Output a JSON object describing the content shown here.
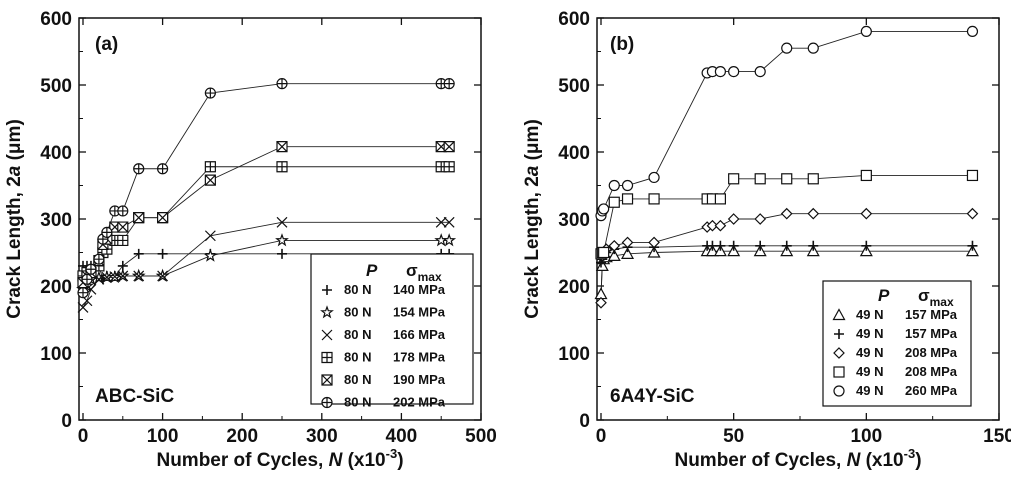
{
  "chart_data": [
    {
      "type": "line",
      "panel_label": "(a)",
      "material": "ABC-SiC",
      "xlabel": {
        "main": "Number of Cycles, ",
        "var": "N",
        "unit_pre": " (x10",
        "unit_exp": "-3",
        "unit_post": ")"
      },
      "ylabel": {
        "main": "Crack Length, 2",
        "var": "a",
        "unit": " (μm)"
      },
      "xlim": [
        0,
        500
      ],
      "ylim": [
        0,
        600
      ],
      "xticks": [
        0,
        100,
        200,
        300,
        400,
        500
      ],
      "yticks": [
        0,
        100,
        200,
        300,
        400,
        500,
        600
      ],
      "legend_header": {
        "p": "P",
        "sigma": "σ",
        "sigma_sub": "max"
      },
      "series": [
        {
          "load": "80 N",
          "stress": "140 MPa",
          "marker": "plus",
          "points": [
            [
              0,
              230
            ],
            [
              5,
              230
            ],
            [
              10,
              230
            ],
            [
              20,
              230
            ],
            [
              25,
              210
            ],
            [
              30,
              215
            ],
            [
              40,
              215
            ],
            [
              50,
              230
            ],
            [
              70,
              248
            ],
            [
              100,
              248
            ],
            [
              160,
              248
            ],
            [
              250,
              248
            ],
            [
              450,
              248
            ],
            [
              460,
              248
            ]
          ]
        },
        {
          "load": "80 N",
          "stress": "154 MPa",
          "marker": "star",
          "points": [
            [
              0,
              195
            ],
            [
              5,
              200
            ],
            [
              10,
              210
            ],
            [
              20,
              212
            ],
            [
              30,
              213
            ],
            [
              40,
              213
            ],
            [
              50,
              215
            ],
            [
              70,
              215
            ],
            [
              100,
              215
            ],
            [
              160,
              245
            ],
            [
              250,
              268
            ],
            [
              450,
              268
            ],
            [
              460,
              268
            ]
          ]
        },
        {
          "load": "80 N",
          "stress": "166 MPa",
          "marker": "x",
          "points": [
            [
              0,
              168
            ],
            [
              5,
              178
            ],
            [
              10,
              195
            ],
            [
              20,
              210
            ],
            [
              30,
              213
            ],
            [
              40,
              214
            ],
            [
              50,
              215
            ],
            [
              70,
              215
            ],
            [
              100,
              215
            ],
            [
              160,
              275
            ],
            [
              250,
              295
            ],
            [
              450,
              295
            ],
            [
              460,
              295
            ]
          ]
        },
        {
          "load": "80 N",
          "stress": "178 MPa",
          "marker": "sqplus",
          "points": [
            [
              0,
              215
            ],
            [
              5,
              220
            ],
            [
              10,
              222
            ],
            [
              20,
              230
            ],
            [
              25,
              250
            ],
            [
              30,
              255
            ],
            [
              40,
              268
            ],
            [
              50,
              268
            ],
            [
              70,
              302
            ],
            [
              100,
              302
            ],
            [
              160,
              378
            ],
            [
              250,
              378
            ],
            [
              450,
              378
            ],
            [
              460,
              378
            ]
          ]
        },
        {
          "load": "80 N",
          "stress": "190 MPa",
          "marker": "sqx",
          "points": [
            [
              0,
              205
            ],
            [
              5,
              215
            ],
            [
              10,
              220
            ],
            [
              20,
              238
            ],
            [
              25,
              262
            ],
            [
              30,
              270
            ],
            [
              40,
              288
            ],
            [
              50,
              288
            ],
            [
              70,
              302
            ],
            [
              100,
              302
            ],
            [
              160,
              358
            ],
            [
              250,
              408
            ],
            [
              450,
              408
            ],
            [
              460,
              408
            ]
          ]
        },
        {
          "load": "80 N",
          "stress": "202 MPa",
          "marker": "circplus",
          "points": [
            [
              0,
              190
            ],
            [
              5,
              210
            ],
            [
              10,
              225
            ],
            [
              20,
              240
            ],
            [
              25,
              270
            ],
            [
              30,
              280
            ],
            [
              40,
              312
            ],
            [
              50,
              312
            ],
            [
              70,
              375
            ],
            [
              100,
              375
            ],
            [
              160,
              488
            ],
            [
              250,
              502
            ],
            [
              450,
              502
            ],
            [
              460,
              502
            ]
          ]
        }
      ]
    },
    {
      "type": "line",
      "panel_label": "(b)",
      "material": "6A4Y-SiC",
      "xlabel": {
        "main": "Number of Cycles, ",
        "var": "N",
        "unit_pre": " (x10",
        "unit_exp": "-3",
        "unit_post": ")"
      },
      "ylabel": {
        "main": "Crack Length, 2",
        "var": "a",
        "unit": " (μm)"
      },
      "xlim": [
        0,
        150
      ],
      "ylim": [
        0,
        600
      ],
      "xticks": [
        0,
        50,
        100,
        150
      ],
      "yticks": [
        0,
        100,
        200,
        300,
        400,
        500,
        600
      ],
      "legend_header": {
        "p": "P",
        "sigma": "σ",
        "sigma_sub": "max"
      },
      "series": [
        {
          "load": "49 N",
          "stress": "157 MPa",
          "marker": "triangle",
          "points": [
            [
              0,
              188
            ],
            [
              0.5,
              230
            ],
            [
              1,
              240
            ],
            [
              2,
              243
            ],
            [
              5,
              245
            ],
            [
              10,
              248
            ],
            [
              20,
              250
            ],
            [
              40,
              252
            ],
            [
              42,
              252
            ],
            [
              45,
              252
            ],
            [
              50,
              252
            ],
            [
              60,
              252
            ],
            [
              70,
              252
            ],
            [
              80,
              252
            ],
            [
              100,
              252
            ],
            [
              140,
              252
            ]
          ]
        },
        {
          "load": "49 N",
          "stress": "157 MPa",
          "marker": "plus",
          "points": [
            [
              0,
              235
            ],
            [
              0.5,
              240
            ],
            [
              1,
              245
            ],
            [
              2,
              250
            ],
            [
              5,
              255
            ],
            [
              10,
              258
            ],
            [
              20,
              258
            ],
            [
              40,
              260
            ],
            [
              42,
              260
            ],
            [
              45,
              260
            ],
            [
              50,
              260
            ],
            [
              60,
              260
            ],
            [
              70,
              260
            ],
            [
              80,
              260
            ],
            [
              100,
              260
            ],
            [
              140,
              260
            ]
          ]
        },
        {
          "load": "49 N",
          "stress": "208 MPa",
          "marker": "diamond",
          "points": [
            [
              0,
              175
            ],
            [
              0.5,
              245
            ],
            [
              1,
              250
            ],
            [
              2,
              255
            ],
            [
              5,
              260
            ],
            [
              10,
              265
            ],
            [
              20,
              265
            ],
            [
              40,
              288
            ],
            [
              42,
              290
            ],
            [
              45,
              290
            ],
            [
              50,
              300
            ],
            [
              60,
              300
            ],
            [
              70,
              308
            ],
            [
              80,
              308
            ],
            [
              100,
              308
            ],
            [
              140,
              308
            ]
          ]
        },
        {
          "load": "49 N",
          "stress": "208 MPa",
          "marker": "square",
          "points": [
            [
              0,
              248
            ],
            [
              0.5,
              250
            ],
            [
              1,
              250
            ],
            [
              5,
              325
            ],
            [
              10,
              330
            ],
            [
              20,
              330
            ],
            [
              40,
              330
            ],
            [
              42,
              330
            ],
            [
              45,
              330
            ],
            [
              50,
              360
            ],
            [
              60,
              360
            ],
            [
              70,
              360
            ],
            [
              80,
              360
            ],
            [
              100,
              365
            ],
            [
              140,
              365
            ]
          ]
        },
        {
          "load": "49 N",
          "stress": "260 MPa",
          "marker": "circle",
          "points": [
            [
              0,
              305
            ],
            [
              0.5,
              312
            ],
            [
              1,
              315
            ],
            [
              5,
              350
            ],
            [
              10,
              350
            ],
            [
              20,
              362
            ],
            [
              40,
              518
            ],
            [
              42,
              520
            ],
            [
              45,
              520
            ],
            [
              50,
              520
            ],
            [
              60,
              520
            ],
            [
              70,
              555
            ],
            [
              80,
              555
            ],
            [
              100,
              580
            ],
            [
              140,
              580
            ]
          ]
        }
      ]
    }
  ]
}
